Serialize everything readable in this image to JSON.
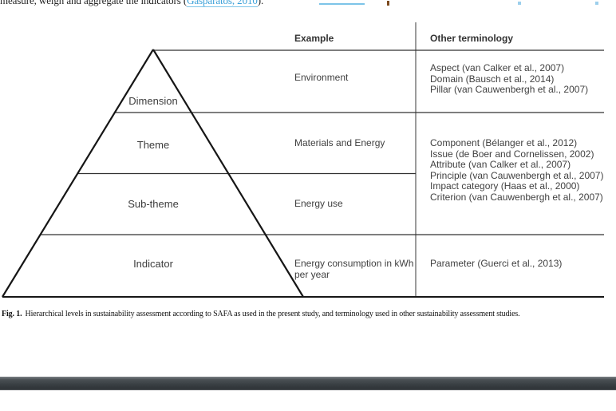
{
  "top_line": {
    "prefix": "measure, weigh and aggregate the indicators (",
    "citation_link": "Gasparatos, 2010",
    "suffix": ").",
    "link_color": "#3ba0d8"
  },
  "figure": {
    "header": {
      "example": "Example",
      "terminology": "Other terminology"
    },
    "pyramid": {
      "levels": [
        "Dimension",
        "Theme",
        "Sub-theme",
        "Indicator"
      ]
    },
    "examples": {
      "dimension": "Environment",
      "theme": "Materials and Energy",
      "subtheme": "Energy use",
      "indicator": "Energy consumption in kWh per year"
    },
    "terminology": {
      "dimension": [
        "Aspect (van Calker et al., 2007)",
        "Domain (Bausch et al., 2014)",
        "Pillar (van Cauwenbergh et al., 2007)"
      ],
      "theme_subtheme": [
        "Component (Bélanger et al., 2012)",
        "Issue (de Boer and Cornelissen, 2002)",
        "Attribute (van Calker et al., 2007)",
        "Principle (van Cauwenbergh et al., 2007)",
        "Impact category (Haas et al., 2000)",
        "Criterion (van Cauwenbergh et al., 2007)"
      ],
      "indicator": [
        "Parameter (Guerci et al., 2013)"
      ]
    }
  },
  "caption": {
    "label": "Fig. 1.",
    "text": "Hierarchical levels in sustainability assessment according to SAFA as used in the present study, and terminology used in other sustainability assessment studies."
  }
}
